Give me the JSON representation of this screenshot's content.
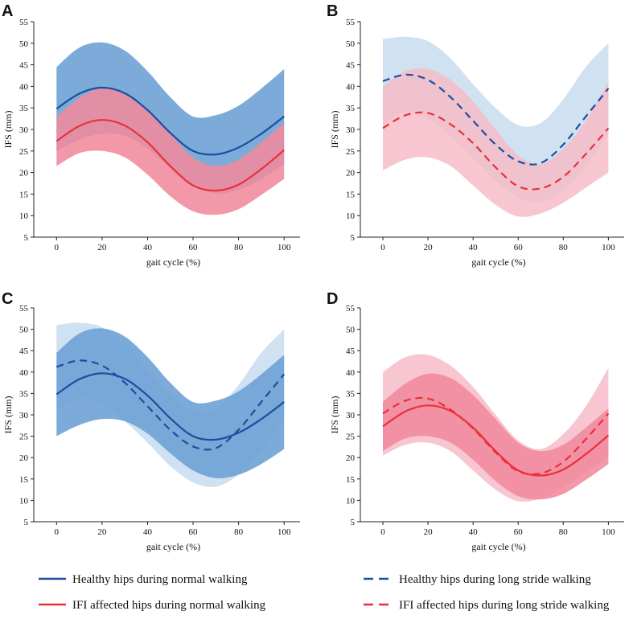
{
  "colors": {
    "healthy_line": "#1a4fa0",
    "healthy_band_normal": "#6a9fd4",
    "healthy_band_long": "#c8dcee",
    "ifi_line": "#e8313a",
    "ifi_band_normal": "#f08a9c",
    "ifi_band_long": "#f6bcc8"
  },
  "legend": {
    "healthy_normal": "Healthy hips during normal walking",
    "healthy_long": "Healthy hips during long stride walking",
    "ifi_normal": "IFI affected hips during normal walking",
    "ifi_long": "IFI affected hips during long stride walking"
  },
  "chart_data": [
    {
      "type": "area",
      "label": "A",
      "xlabel": "gait cycle (%)",
      "ylabel": "IFS (mm)",
      "xlim": [
        -10,
        107
      ],
      "ylim": [
        5,
        55
      ],
      "xticks": [
        0,
        20,
        40,
        60,
        80,
        100
      ],
      "yticks": [
        5,
        10,
        15,
        20,
        25,
        30,
        35,
        40,
        45,
        50,
        55
      ],
      "x": [
        0,
        10,
        20,
        30,
        40,
        50,
        60,
        70,
        80,
        90,
        100
      ],
      "series": [
        {
          "name": "Healthy hips during normal walking",
          "style": "solid",
          "color_key": "healthy",
          "band_key": "healthy_band_normal",
          "mean": [
            34.8,
            38.3,
            39.7,
            38.4,
            34.5,
            29.2,
            25.0,
            24.2,
            25.8,
            29.0,
            33.0
          ],
          "upper": [
            44.5,
            49.0,
            50.2,
            48.3,
            43.5,
            37.5,
            33.0,
            33.3,
            35.5,
            39.5,
            44.0
          ],
          "lower": [
            25.0,
            27.6,
            29.0,
            28.5,
            25.6,
            21.0,
            17.0,
            15.2,
            16.0,
            18.5,
            22.0
          ]
        },
        {
          "name": "IFI affected hips during normal walking",
          "style": "solid",
          "color_key": "ifi",
          "band_key": "ifi_band_normal",
          "mean": [
            27.3,
            30.8,
            32.2,
            30.9,
            27.0,
            21.5,
            17.0,
            15.8,
            17.2,
            20.8,
            25.2
          ],
          "upper": [
            33.0,
            37.3,
            39.6,
            38.6,
            34.6,
            29.0,
            23.5,
            21.5,
            23.0,
            27.0,
            31.5
          ],
          "lower": [
            21.5,
            24.5,
            25.0,
            23.5,
            19.5,
            14.5,
            11.0,
            10.2,
            11.5,
            14.8,
            18.5
          ]
        }
      ]
    },
    {
      "type": "area",
      "label": "B",
      "xlabel": "gait cycle (%)",
      "ylabel": "IFS (mm)",
      "xlim": [
        -10,
        107
      ],
      "ylim": [
        5,
        55
      ],
      "xticks": [
        0,
        20,
        40,
        60,
        80,
        100
      ],
      "yticks": [
        5,
        10,
        15,
        20,
        25,
        30,
        35,
        40,
        45,
        50,
        55
      ],
      "x": [
        0,
        10,
        20,
        30,
        40,
        50,
        60,
        70,
        80,
        90,
        100
      ],
      "series": [
        {
          "name": "Healthy hips during long stride walking",
          "style": "dashed",
          "color_key": "healthy",
          "band_key": "healthy_band_long",
          "mean": [
            41.2,
            42.7,
            41.5,
            37.5,
            32.0,
            26.5,
            22.6,
            22.2,
            26.5,
            33.0,
            39.5
          ],
          "upper": [
            51.0,
            51.5,
            50.5,
            46.5,
            40.5,
            35.0,
            31.0,
            31.5,
            37.0,
            44.5,
            50.0
          ],
          "lower": [
            31.3,
            33.9,
            32.5,
            28.5,
            23.5,
            18.0,
            14.2,
            13.2,
            16.0,
            21.5,
            29.0
          ]
        },
        {
          "name": "IFI affected hips during long stride walking",
          "style": "dashed",
          "color_key": "ifi",
          "band_key": "ifi_band_long",
          "mean": [
            30.3,
            33.3,
            33.8,
            31.2,
            26.8,
            21.2,
            16.8,
            16.3,
            19.0,
            24.3,
            30.3
          ],
          "upper": [
            40.0,
            43.5,
            44.0,
            41.5,
            36.5,
            30.0,
            24.0,
            22.0,
            25.5,
            32.0,
            41.0
          ],
          "lower": [
            20.5,
            23.0,
            23.5,
            21.5,
            17.0,
            12.5,
            9.8,
            10.5,
            13.0,
            16.5,
            20.0
          ]
        }
      ]
    },
    {
      "type": "area",
      "label": "C",
      "xlabel": "gait cycle (%)",
      "ylabel": "IFS (mm)",
      "xlim": [
        -10,
        107
      ],
      "ylim": [
        5,
        55
      ],
      "xticks": [
        0,
        20,
        40,
        60,
        80,
        100
      ],
      "yticks": [
        5,
        10,
        15,
        20,
        25,
        30,
        35,
        40,
        45,
        50,
        55
      ],
      "x": [
        0,
        10,
        20,
        30,
        40,
        50,
        60,
        70,
        80,
        90,
        100
      ],
      "series": [
        {
          "name": "Healthy hips during long stride walking",
          "style": "dashed",
          "color_key": "healthy",
          "band_key": "healthy_band_long",
          "mean": [
            41.2,
            42.7,
            41.5,
            37.5,
            32.0,
            26.5,
            22.6,
            22.2,
            26.5,
            33.0,
            39.5
          ],
          "upper": [
            51.0,
            51.5,
            50.5,
            46.5,
            40.5,
            35.0,
            31.0,
            31.5,
            37.0,
            44.5,
            50.0
          ],
          "lower": [
            31.3,
            33.9,
            32.5,
            28.5,
            23.5,
            18.0,
            14.2,
            13.2,
            16.0,
            21.5,
            29.0
          ]
        },
        {
          "name": "Healthy hips during normal walking",
          "style": "solid",
          "color_key": "healthy",
          "band_key": "healthy_band_normal",
          "mean": [
            34.8,
            38.3,
            39.7,
            38.4,
            34.5,
            29.2,
            25.0,
            24.2,
            25.8,
            29.0,
            33.0
          ],
          "upper": [
            44.5,
            49.0,
            50.2,
            48.3,
            43.5,
            37.5,
            33.0,
            33.3,
            35.5,
            39.5,
            44.0
          ],
          "lower": [
            25.0,
            27.6,
            29.0,
            28.5,
            25.6,
            21.0,
            17.0,
            15.2,
            16.0,
            18.5,
            22.0
          ]
        }
      ]
    },
    {
      "type": "area",
      "label": "D",
      "xlabel": "gait cycle (%)",
      "ylabel": "IFS (mm)",
      "xlim": [
        -10,
        107
      ],
      "ylim": [
        5,
        55
      ],
      "xticks": [
        0,
        20,
        40,
        60,
        80,
        100
      ],
      "yticks": [
        5,
        10,
        15,
        20,
        25,
        30,
        35,
        40,
        45,
        50,
        55
      ],
      "x": [
        0,
        10,
        20,
        30,
        40,
        50,
        60,
        70,
        80,
        90,
        100
      ],
      "series": [
        {
          "name": "IFI affected hips during long stride walking",
          "style": "dashed",
          "color_key": "ifi",
          "band_key": "ifi_band_long",
          "mean": [
            30.3,
            33.3,
            33.8,
            31.2,
            26.8,
            21.2,
            16.8,
            16.3,
            19.0,
            24.3,
            30.3
          ],
          "upper": [
            40.0,
            43.5,
            44.0,
            41.5,
            36.5,
            30.0,
            24.0,
            22.0,
            25.5,
            32.0,
            41.0
          ],
          "lower": [
            20.5,
            23.0,
            23.5,
            21.5,
            17.0,
            12.5,
            9.8,
            10.5,
            13.0,
            16.5,
            20.0
          ]
        },
        {
          "name": "IFI affected hips during normal walking",
          "style": "solid",
          "color_key": "ifi",
          "band_key": "ifi_band_normal",
          "mean": [
            27.3,
            30.8,
            32.2,
            30.9,
            27.0,
            21.5,
            17.0,
            15.8,
            17.2,
            20.8,
            25.2
          ],
          "upper": [
            33.0,
            37.3,
            39.6,
            38.6,
            34.6,
            29.0,
            23.5,
            21.5,
            23.0,
            27.0,
            31.5
          ],
          "lower": [
            21.5,
            24.5,
            25.0,
            23.5,
            19.5,
            14.5,
            11.0,
            10.2,
            11.5,
            14.8,
            18.5
          ]
        }
      ]
    }
  ]
}
